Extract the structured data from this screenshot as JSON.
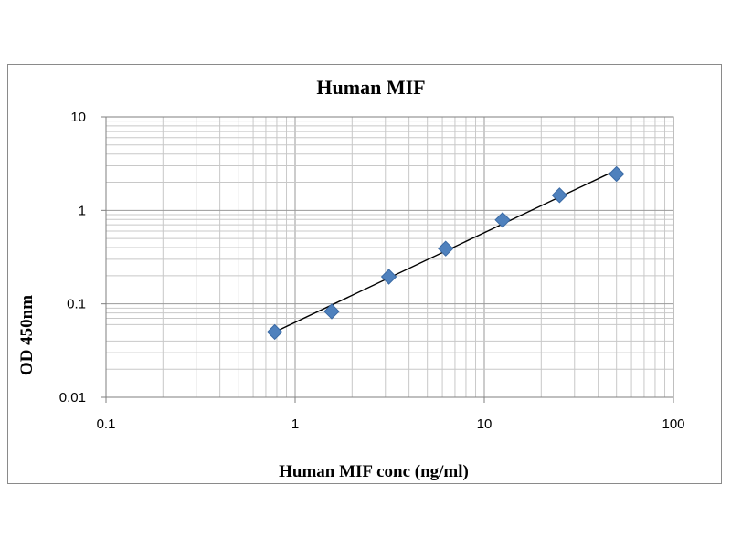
{
  "chart_data": {
    "type": "scatter",
    "title": "Human MIF",
    "xlabel": "Human MIF conc (ng/ml)",
    "ylabel": "OD 450nm",
    "x_scale": "log",
    "y_scale": "log",
    "xlim": [
      0.1,
      100
    ],
    "ylim": [
      0.01,
      10
    ],
    "x_ticks": [
      "0.1",
      "1",
      "10",
      "100"
    ],
    "y_ticks": [
      "0.01",
      "0.1",
      "1",
      "10"
    ],
    "grid": true,
    "legend": "none",
    "marker_color": "#4f81bd",
    "line_color": "#000000",
    "series": [
      {
        "marker": "diamond",
        "x": [
          0.78,
          1.56,
          3.13,
          6.25,
          12.5,
          25,
          50
        ],
        "y": [
          0.05,
          0.083,
          0.195,
          0.39,
          0.79,
          1.45,
          2.45
        ]
      }
    ],
    "trendline": {
      "type": "linear-fit",
      "x": [
        0.78,
        50
      ],
      "y": [
        0.05,
        2.7
      ]
    }
  }
}
